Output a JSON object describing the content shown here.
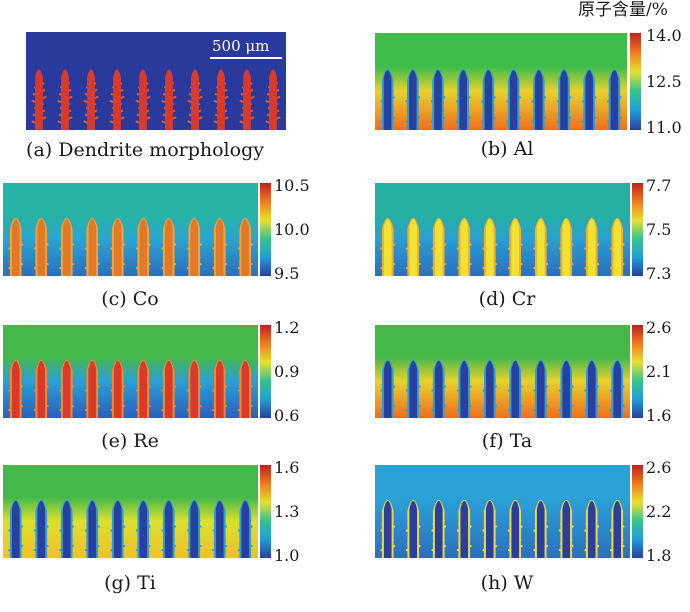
{
  "unit_label": "原子含量/%",
  "scale_bar": "500 μm",
  "panels": [
    {
      "key": "a",
      "caption": "(a) Dendrite morphology",
      "palette": "morph",
      "ticks": []
    },
    {
      "key": "b",
      "caption": "(b) Al",
      "palette": "al",
      "ticks": [
        "14.0",
        "12.5",
        "11.0"
      ]
    },
    {
      "key": "c",
      "caption": "(c) Co",
      "palette": "co",
      "ticks": [
        "10.5",
        "10.0",
        "9.5"
      ]
    },
    {
      "key": "d",
      "caption": "(d) Cr",
      "palette": "cr",
      "ticks": [
        "7.7",
        "7.5",
        "7.3"
      ]
    },
    {
      "key": "e",
      "caption": "(e) Re",
      "palette": "re",
      "ticks": [
        "1.2",
        "0.9",
        "0.6"
      ]
    },
    {
      "key": "f",
      "caption": "(f) Ta",
      "palette": "ta",
      "ticks": [
        "2.6",
        "2.1",
        "1.6"
      ]
    },
    {
      "key": "g",
      "caption": "(g) Ti",
      "palette": "ti",
      "ticks": [
        "1.6",
        "1.3",
        "1.0"
      ]
    },
    {
      "key": "h",
      "caption": "(h) W",
      "palette": "w",
      "ticks": [
        "2.6",
        "2.2",
        "1.8"
      ]
    }
  ],
  "colors": {
    "colorbar_stops": [
      "#2b3f9e",
      "#1f9fd8",
      "#35c48a",
      "#e6e12f",
      "#f07a1e",
      "#c02020"
    ],
    "morph": {
      "bg": "#2a3a9c",
      "den": "#d83a2c",
      "arm": "#e05a38"
    },
    "al": {
      "top": "#3fbd4a",
      "mid": "#e8d12c",
      "low": "#f06e1e",
      "den": "#2b3f9e",
      "edge": "#2a9fd8"
    },
    "co": {
      "top": "#27b3a6",
      "mid": "#2aa5d0",
      "low": "#2b6fbf",
      "den": "#e07a28",
      "edge": "#f2a23a"
    },
    "cr": {
      "top": "#26b0a2",
      "mid": "#2a9fd3",
      "low": "#2b6fbf",
      "den": "#f0e232",
      "edge": "#f6ad2a"
    },
    "re": {
      "top": "#45b84a",
      "mid": "#2aa0d6",
      "low": "#2b5fbf",
      "den": "#d83a2c",
      "edge": "#f08a2a"
    },
    "ta": {
      "top": "#45b84a",
      "mid": "#e8d12c",
      "low": "#f06e1e",
      "den": "#2b3f9e",
      "edge": "#2a9fd8"
    },
    "ti": {
      "top": "#45b84a",
      "mid": "#dbe02e",
      "low": "#f0c02a",
      "den": "#2b3f9e",
      "edge": "#2a9fd8"
    },
    "w": {
      "top": "#2aa2d8",
      "mid": "#2a8fd0",
      "low": "#2b6fbf",
      "den": "#2b3f9e",
      "edge": "#f0d83a"
    }
  }
}
